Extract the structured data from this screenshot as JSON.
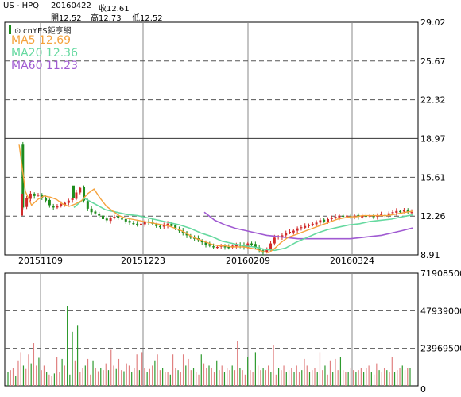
{
  "header": {
    "symbol": "US - HPQ",
    "date": "20160422",
    "close_label": "收12.61",
    "open_label": "開12.52",
    "high_label": "高12.73",
    "low_label": "低12.52"
  },
  "brand": "cnYES鉅亨網",
  "ma": [
    {
      "label": "MA5 12.69",
      "color": "#f5a23c"
    },
    {
      "label": "MA20 12.36",
      "color": "#66d9a0"
    },
    {
      "label": "MA60 11.23",
      "color": "#a05ad2"
    }
  ],
  "colors": {
    "up": "#d12a2a",
    "down": "#1e8c1e",
    "vol_up": "#e08080",
    "vol_down": "#2e9a2e",
    "grid": "#555555"
  },
  "chart_data": [
    {
      "type": "candlestick",
      "ylim": [
        8.91,
        29.02
      ],
      "yticks": [
        "29.02",
        "25.67",
        "22.32",
        "18.97",
        "15.61",
        "12.26",
        "8.91"
      ],
      "xticks": [
        "20151109",
        "20151223",
        "20160209",
        "20160324"
      ],
      "close_path": [
        18.5,
        13.0,
        13.8,
        14.2,
        14.0,
        14.1,
        13.8,
        13.6,
        13.2,
        13.0,
        13.1,
        13.3,
        13.4,
        13.6,
        13.8,
        14.3,
        14.7,
        13.6,
        12.9,
        12.6,
        12.5,
        12.3,
        12.0,
        11.9,
        12.1,
        12.2,
        12.1,
        12.0,
        11.8,
        11.7,
        11.6,
        11.5,
        11.6,
        11.8,
        11.7,
        11.6,
        11.4,
        11.3,
        11.5,
        11.6,
        11.4,
        11.2,
        11.0,
        10.8,
        10.6,
        10.4,
        10.3,
        10.2,
        10.0,
        9.8,
        9.7,
        9.6,
        9.6,
        9.7,
        9.6,
        9.5,
        9.7,
        9.8,
        9.7,
        9.6,
        9.9,
        9.8,
        9.6,
        9.3,
        9.1,
        9.4,
        9.9,
        10.4,
        10.5,
        10.6,
        10.8,
        10.9,
        11.0,
        11.2,
        11.3,
        11.4,
        11.5,
        11.6,
        11.7,
        11.9,
        11.8,
        12.0,
        12.1,
        12.2,
        12.3,
        12.2,
        12.3,
        12.2,
        12.3,
        12.2,
        12.3,
        12.2,
        12.3,
        12.2,
        12.3,
        12.4,
        12.3,
        12.5,
        12.6,
        12.7,
        12.6,
        12.8,
        12.6,
        12.61
      ],
      "ma5": {
        "start": 14.6,
        "points": [
          18.5,
          14.4,
          13.2,
          13.7,
          14.0,
          13.9,
          13.7,
          13.3,
          13.1,
          13.3,
          13.6,
          14.2,
          14.6,
          13.8,
          13.1,
          12.7,
          12.3,
          12.1,
          12.0,
          11.9,
          11.8,
          11.7,
          11.6,
          11.5,
          11.4,
          11.2,
          11.0,
          10.7,
          10.4,
          10.2,
          10.0,
          9.8,
          9.7,
          9.7,
          9.6,
          9.6,
          9.6,
          9.5,
          9.4,
          9.2,
          9.1,
          9.5,
          10.0,
          10.4,
          10.6,
          10.8,
          11.0,
          11.2,
          11.4,
          11.6,
          11.8,
          12.0,
          12.1,
          12.2,
          12.2,
          12.3,
          12.3,
          12.3,
          12.3,
          12.3,
          12.4,
          12.5,
          12.6,
          12.69
        ]
      },
      "ma20": {
        "points": [
          13.0,
          13.8,
          13.3,
          12.8,
          12.6,
          12.4,
          12.3,
          12.1,
          11.9,
          11.7,
          11.5,
          11.2,
          10.8,
          10.5,
          10.1,
          9.9,
          9.7,
          9.6,
          9.4,
          9.3,
          9.5,
          10.0,
          10.4,
          10.8,
          11.1,
          11.3,
          11.5,
          11.6,
          11.8,
          11.9,
          12.0,
          12.2,
          12.36
        ]
      },
      "ma60": {
        "points": [
          12.6,
          11.9,
          11.5,
          11.2,
          11.0,
          10.8,
          10.6,
          10.5,
          10.4,
          10.3,
          10.3,
          10.3,
          10.3,
          10.3,
          10.3,
          10.4,
          10.5,
          10.6,
          10.8,
          11.0,
          11.23
        ]
      }
    },
    {
      "type": "bar",
      "ylim": [
        0,
        71908500
      ],
      "yticks": [
        "71908500",
        "47939000",
        "23969500",
        "0"
      ],
      "values": [
        12,
        14,
        16,
        9,
        22,
        30,
        18,
        15,
        28,
        20,
        38,
        18,
        25,
        14,
        18,
        12,
        10,
        9,
        11,
        26,
        12,
        24,
        18,
        71,
        10,
        48,
        22,
        54,
        12,
        16,
        18,
        24,
        10,
        22,
        16,
        13,
        16,
        14,
        20,
        14,
        32,
        18,
        15,
        24,
        14,
        13,
        20,
        18,
        12,
        16,
        28,
        14,
        30,
        16,
        12,
        15,
        18,
        22,
        28,
        14,
        16,
        12,
        12,
        10,
        28,
        16,
        14,
        12,
        28,
        18,
        24,
        14,
        16,
        12,
        10,
        28,
        20,
        16,
        18,
        16,
        12,
        22,
        14,
        18,
        12,
        16,
        14,
        18,
        14,
        40,
        16,
        14,
        10,
        26,
        14,
        12,
        30,
        18,
        14,
        16,
        14,
        18,
        12,
        36,
        10,
        16,
        14,
        18,
        12,
        14,
        16,
        12,
        18,
        12,
        14,
        24,
        18,
        12,
        14,
        16,
        12,
        30,
        14,
        18,
        10,
        22,
        12,
        24,
        14,
        26,
        14,
        12,
        12,
        16,
        14,
        12,
        14,
        16,
        12,
        16,
        18,
        12,
        10,
        20,
        14,
        12,
        16,
        14,
        12,
        26,
        12,
        14,
        16,
        18,
        14,
        16,
        16
      ]
    }
  ]
}
